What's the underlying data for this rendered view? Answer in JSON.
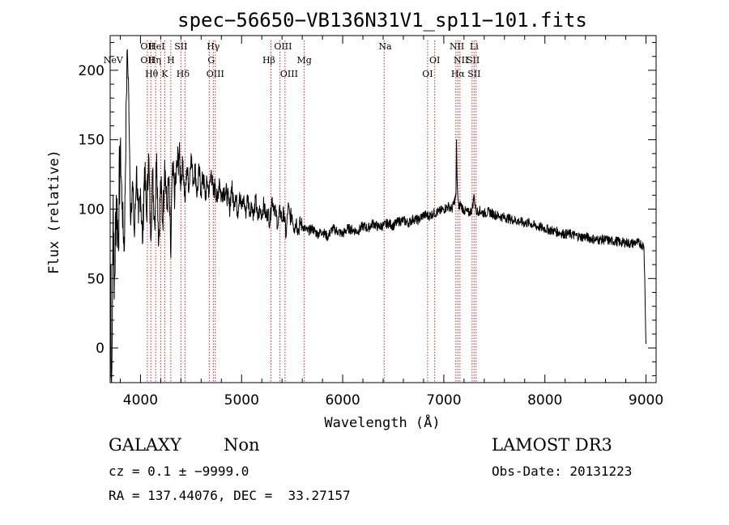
{
  "chart_data": {
    "type": "line",
    "title": "spec−56650−VB136N31V1_sp11−101.fits",
    "xlabel": "Wavelength (Å)",
    "ylabel": "Flux (relative)",
    "xlim": [
      3700,
      9100
    ],
    "ylim": [
      -25,
      225
    ],
    "xticks": [
      4000,
      5000,
      6000,
      7000,
      8000,
      9000
    ],
    "xtick_labels": [
      "4000",
      "5000",
      "6000",
      "7000",
      "8000",
      "9000"
    ],
    "yticks": [
      0,
      50,
      100,
      150,
      200
    ],
    "ytick_labels": [
      "0",
      "50",
      "100",
      "150",
      "200"
    ],
    "grid": false,
    "series": [
      {
        "name": "spectrum",
        "x": [
          3700,
          3710,
          3720,
          3730,
          3740,
          3760,
          3780,
          3800,
          3820,
          3840,
          3860,
          3870,
          3880,
          3890,
          3900,
          3920,
          3940,
          3960,
          3980,
          4000,
          4020,
          4040,
          4060,
          4080,
          4100,
          4120,
          4140,
          4160,
          4180,
          4200,
          4220,
          4240,
          4260,
          4280,
          4300,
          4310,
          4320,
          4340,
          4360,
          4380,
          4400,
          4420,
          4440,
          4460,
          4480,
          4500,
          4520,
          4540,
          4560,
          4580,
          4600,
          4620,
          4640,
          4660,
          4680,
          4700,
          4720,
          4740,
          4760,
          4780,
          4800,
          4820,
          4840,
          4860,
          4880,
          4900,
          4920,
          4940,
          4960,
          4980,
          5000,
          5020,
          5040,
          5060,
          5080,
          5100,
          5120,
          5140,
          5160,
          5180,
          5200,
          5220,
          5240,
          5260,
          5280,
          5300,
          5320,
          5340,
          5360,
          5380,
          5400,
          5420,
          5440,
          5460,
          5480,
          5500,
          5520,
          5540,
          5560,
          5580,
          5600,
          5650,
          5700,
          5750,
          5800,
          5850,
          5900,
          5950,
          6000,
          6050,
          6100,
          6150,
          6200,
          6250,
          6300,
          6350,
          6400,
          6450,
          6500,
          6550,
          6600,
          6650,
          6700,
          6750,
          6800,
          6850,
          6900,
          6950,
          7000,
          7050,
          7080,
          7100,
          7120,
          7125,
          7130,
          7140,
          7150,
          7160,
          7200,
          7250,
          7280,
          7300,
          7320,
          7350,
          7400,
          7450,
          7500,
          7550,
          7600,
          7650,
          7700,
          7750,
          7800,
          7850,
          7900,
          7950,
          8000,
          8050,
          8100,
          8150,
          8200,
          8250,
          8300,
          8350,
          8400,
          8450,
          8500,
          8550,
          8600,
          8650,
          8700,
          8750,
          8800,
          8850,
          8900,
          8950,
          8980,
          8990,
          9000
        ],
        "y": [
          60,
          -20,
          10,
          110,
          35,
          110,
          80,
          145,
          100,
          70,
          180,
          215,
          195,
          150,
          95,
          120,
          80,
          130,
          90,
          115,
          75,
          130,
          95,
          140,
          80,
          125,
          90,
          140,
          75,
          120,
          90,
          135,
          100,
          120,
          65,
          115,
          125,
          110,
          130,
          140,
          120,
          135,
          105,
          130,
          115,
          140,
          120,
          130,
          110,
          128,
          112,
          125,
          108,
          120,
          112,
          128,
          110,
          118,
          105,
          122,
          108,
          115,
          112,
          110,
          100,
          116,
          106,
          110,
          98,
          112,
          100,
          108,
          96,
          110,
          98,
          104,
          95,
          108,
          92,
          100,
          96,
          104,
          94,
          98,
          90,
          108,
          102,
          96,
          88,
          100,
          92,
          98,
          80,
          102,
          94,
          96,
          86,
          92,
          84,
          90,
          88,
          84,
          86,
          82,
          84,
          80,
          86,
          84,
          82,
          86,
          85,
          84,
          88,
          86,
          90,
          87,
          88,
          90,
          88,
          91,
          92,
          90,
          93,
          92,
          96,
          95,
          97,
          98,
          100,
          102,
          100,
          104,
          110,
          150,
          125,
          108,
          100,
          104,
          99,
          97,
          100,
          110,
          98,
          99,
          97,
          98,
          96,
          95,
          94,
          93,
          92,
          91,
          90,
          90,
          88,
          87,
          86,
          85,
          84,
          83,
          82,
          82,
          81,
          80,
          80,
          79,
          78,
          78,
          78,
          77,
          77,
          76,
          76,
          75,
          76,
          75,
          73,
          40,
          3
        ]
      }
    ],
    "line_labels_top": [
      {
        "x": 4070,
        "label": "OII"
      },
      {
        "x": 4160,
        "label": "HeI"
      },
      {
        "x": 4400,
        "label": "SII"
      },
      {
        "x": 4720,
        "label": "Hγ"
      },
      {
        "x": 5410,
        "label": "OIII"
      },
      {
        "x": 6420,
        "label": "Na"
      },
      {
        "x": 7130,
        "label": "NII"
      },
      {
        "x": 7300,
        "label": "Li"
      }
    ],
    "line_labels_mid": [
      {
        "x": 3730,
        "label": "NeV"
      },
      {
        "x": 4070,
        "label": "OII"
      },
      {
        "x": 4140,
        "label": "Hη"
      },
      {
        "x": 4300,
        "label": "H"
      },
      {
        "x": 4700,
        "label": "G"
      },
      {
        "x": 5270,
        "label": "Hβ"
      },
      {
        "x": 5620,
        "label": "Mg"
      },
      {
        "x": 6910,
        "label": "OI"
      },
      {
        "x": 7170,
        "label": "NII"
      },
      {
        "x": 7290,
        "label": "SII"
      }
    ],
    "line_labels_low": [
      {
        "x": 4110,
        "label": "Hθ"
      },
      {
        "x": 4240,
        "label": "K"
      },
      {
        "x": 4420,
        "label": "Hδ"
      },
      {
        "x": 4740,
        "label": "OIII"
      },
      {
        "x": 5470,
        "label": "OIII"
      },
      {
        "x": 6840,
        "label": "OI"
      },
      {
        "x": 7140,
        "label": "Hα"
      },
      {
        "x": 7300,
        "label": "SII"
      }
    ],
    "line_markers": [
      4068,
      4102,
      4150,
      4200,
      4240,
      4300,
      4400,
      4440,
      4680,
      4720,
      4740,
      5290,
      5380,
      5430,
      5620,
      6410,
      6840,
      6910,
      7120,
      7140,
      7160,
      7280,
      7300,
      7320
    ],
    "marker_color": "#cc2222"
  },
  "info": {
    "object_class": "GALAXY",
    "subclass": "Non",
    "survey": "LAMOST DR3",
    "redshift_line": "cz = 0.1 ± −9999.0",
    "obs_date": "Obs-Date: 20131223",
    "coords": "RA = 137.44076, DEC =  33.27157"
  }
}
